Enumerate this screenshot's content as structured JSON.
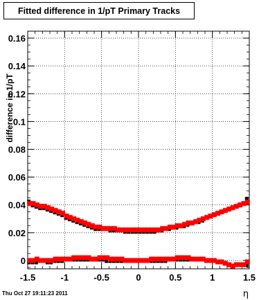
{
  "title": "Fitted difference in 1/pT  Primary Tracks",
  "footer_date": "Thu Oct 27 19:11:23 2011",
  "chart_data": {
    "type": "scatter",
    "title": "Fitted difference in 1/pT  Primary Tracks",
    "xlabel": "η",
    "ylabel": "difference in 1/pT",
    "xlim": [
      -1.5,
      1.5
    ],
    "ylim": [
      -0.006,
      0.165
    ],
    "xticks": [
      -1.5,
      -1,
      -0.5,
      0,
      0.5,
      1,
      1.5
    ],
    "xtick_labels": [
      "-1.5",
      "-1",
      "-0.5",
      "0",
      "0.5",
      "1",
      "1.5"
    ],
    "yticks": [
      0,
      0.02,
      0.04,
      0.06,
      0.08,
      0.1,
      0.12,
      0.14,
      0.16
    ],
    "ytick_labels": [
      "0",
      "0.02",
      "0.04",
      "0.06",
      "0.08",
      "0.1",
      "0.12",
      "0.14",
      "0.16"
    ],
    "grid": true,
    "series_colors": [
      "#000000",
      "#ff0000"
    ],
    "series": [
      {
        "x": [
          -1.475,
          -1.425,
          -1.375,
          -1.325,
          -1.275,
          -1.225,
          -1.175,
          -1.125,
          -1.075,
          -1.025,
          -0.975,
          -0.925,
          -0.875,
          -0.825,
          -0.775,
          -0.725,
          -0.675,
          -0.625,
          -0.575,
          -0.525,
          -0.475,
          -0.425,
          -0.375,
          -0.325,
          -0.275,
          -0.225,
          -0.175,
          -0.125,
          -0.075,
          -0.025,
          0.025,
          0.075,
          0.125,
          0.175,
          0.225,
          0.275,
          0.325,
          0.375,
          0.425,
          0.475,
          0.525,
          0.575,
          0.625,
          0.675,
          0.725,
          0.775,
          0.825,
          0.875,
          0.925,
          0.975,
          1.025,
          1.075,
          1.125,
          1.175,
          1.225,
          1.275,
          1.325,
          1.375,
          1.425,
          1.475
        ],
        "upper": [
          0.043,
          0.04,
          0.039,
          0.038,
          0.038,
          0.037,
          0.036,
          0.035,
          0.034,
          0.033,
          0.031,
          0.03,
          0.029,
          0.028,
          0.027,
          0.026,
          0.025,
          0.024,
          0.023,
          0.023,
          0.023,
          0.023,
          0.022,
          0.022,
          0.022,
          0.022,
          0.021,
          0.021,
          0.021,
          0.021,
          0.021,
          0.021,
          0.021,
          0.021,
          0.021,
          0.022,
          0.022,
          0.023,
          0.023,
          0.024,
          0.024,
          0.025,
          0.025,
          0.026,
          0.027,
          0.028,
          0.028,
          0.029,
          0.031,
          0.032,
          0.033,
          0.034,
          0.035,
          0.036,
          0.037,
          0.038,
          0.039,
          0.04,
          0.041,
          0.045
        ],
        "lower": [
          -0.001,
          -0.001,
          -0.001,
          0.0,
          0.0,
          -0.001,
          -0.001,
          0.0,
          0.0,
          0.0,
          0.001,
          0.001,
          0.001,
          0.001,
          0.001,
          0.001,
          0.001,
          0.001,
          0.001,
          0.001,
          0.001,
          0.0,
          0.0,
          0.0,
          0.0,
          0.0,
          0.0,
          0.0,
          0.0,
          0.0,
          0.0,
          0.0,
          0.0,
          0.0,
          0.0,
          0.0,
          0.0,
          0.0,
          0.001,
          0.001,
          0.001,
          0.001,
          0.001,
          0.001,
          0.001,
          0.001,
          0.001,
          0.001,
          0.0,
          0.0,
          0.0,
          -0.001,
          -0.001,
          -0.002,
          -0.003,
          -0.003,
          -0.003,
          -0.003,
          -0.003,
          -0.003
        ]
      },
      {
        "x": [
          -1.475,
          -1.425,
          -1.375,
          -1.325,
          -1.275,
          -1.225,
          -1.175,
          -1.125,
          -1.075,
          -1.025,
          -0.975,
          -0.925,
          -0.875,
          -0.825,
          -0.775,
          -0.725,
          -0.675,
          -0.625,
          -0.575,
          -0.525,
          -0.475,
          -0.425,
          -0.375,
          -0.325,
          -0.275,
          -0.225,
          -0.175,
          -0.125,
          -0.075,
          -0.025,
          0.025,
          0.075,
          0.125,
          0.175,
          0.225,
          0.275,
          0.325,
          0.375,
          0.425,
          0.475,
          0.525,
          0.575,
          0.625,
          0.675,
          0.725,
          0.775,
          0.825,
          0.875,
          0.925,
          0.975,
          1.025,
          1.075,
          1.125,
          1.175,
          1.225,
          1.275,
          1.325,
          1.375,
          1.425,
          1.475
        ],
        "upper": [
          0.041,
          0.041,
          0.04,
          0.039,
          0.039,
          0.038,
          0.037,
          0.036,
          0.035,
          0.034,
          0.032,
          0.031,
          0.03,
          0.029,
          0.028,
          0.027,
          0.026,
          0.025,
          0.024,
          0.024,
          0.023,
          0.023,
          0.023,
          0.023,
          0.022,
          0.022,
          0.022,
          0.022,
          0.022,
          0.022,
          0.022,
          0.022,
          0.022,
          0.022,
          0.022,
          0.022,
          0.023,
          0.023,
          0.024,
          0.024,
          0.025,
          0.025,
          0.026,
          0.027,
          0.027,
          0.028,
          0.029,
          0.03,
          0.031,
          0.032,
          0.033,
          0.034,
          0.035,
          0.036,
          0.037,
          0.038,
          0.039,
          0.04,
          0.041,
          0.042
        ],
        "lower": [
          0.0,
          0.0,
          0.001,
          0.0,
          0.0,
          0.0,
          0.0,
          0.001,
          0.001,
          0.001,
          0.001,
          0.001,
          0.002,
          0.002,
          0.002,
          0.002,
          0.002,
          0.001,
          0.001,
          0.002,
          0.002,
          0.002,
          0.001,
          0.001,
          0.001,
          0.001,
          0.0,
          0.0,
          0.0,
          0.0,
          0.0,
          0.0,
          0.0,
          0.001,
          0.001,
          0.001,
          0.001,
          0.001,
          0.001,
          0.001,
          0.002,
          0.002,
          0.002,
          0.002,
          0.001,
          0.001,
          0.001,
          0.001,
          0.0,
          0.0,
          0.0,
          -0.001,
          -0.001,
          -0.002,
          -0.003,
          -0.004,
          -0.003,
          -0.003,
          -0.003,
          -0.001
        ]
      }
    ]
  }
}
